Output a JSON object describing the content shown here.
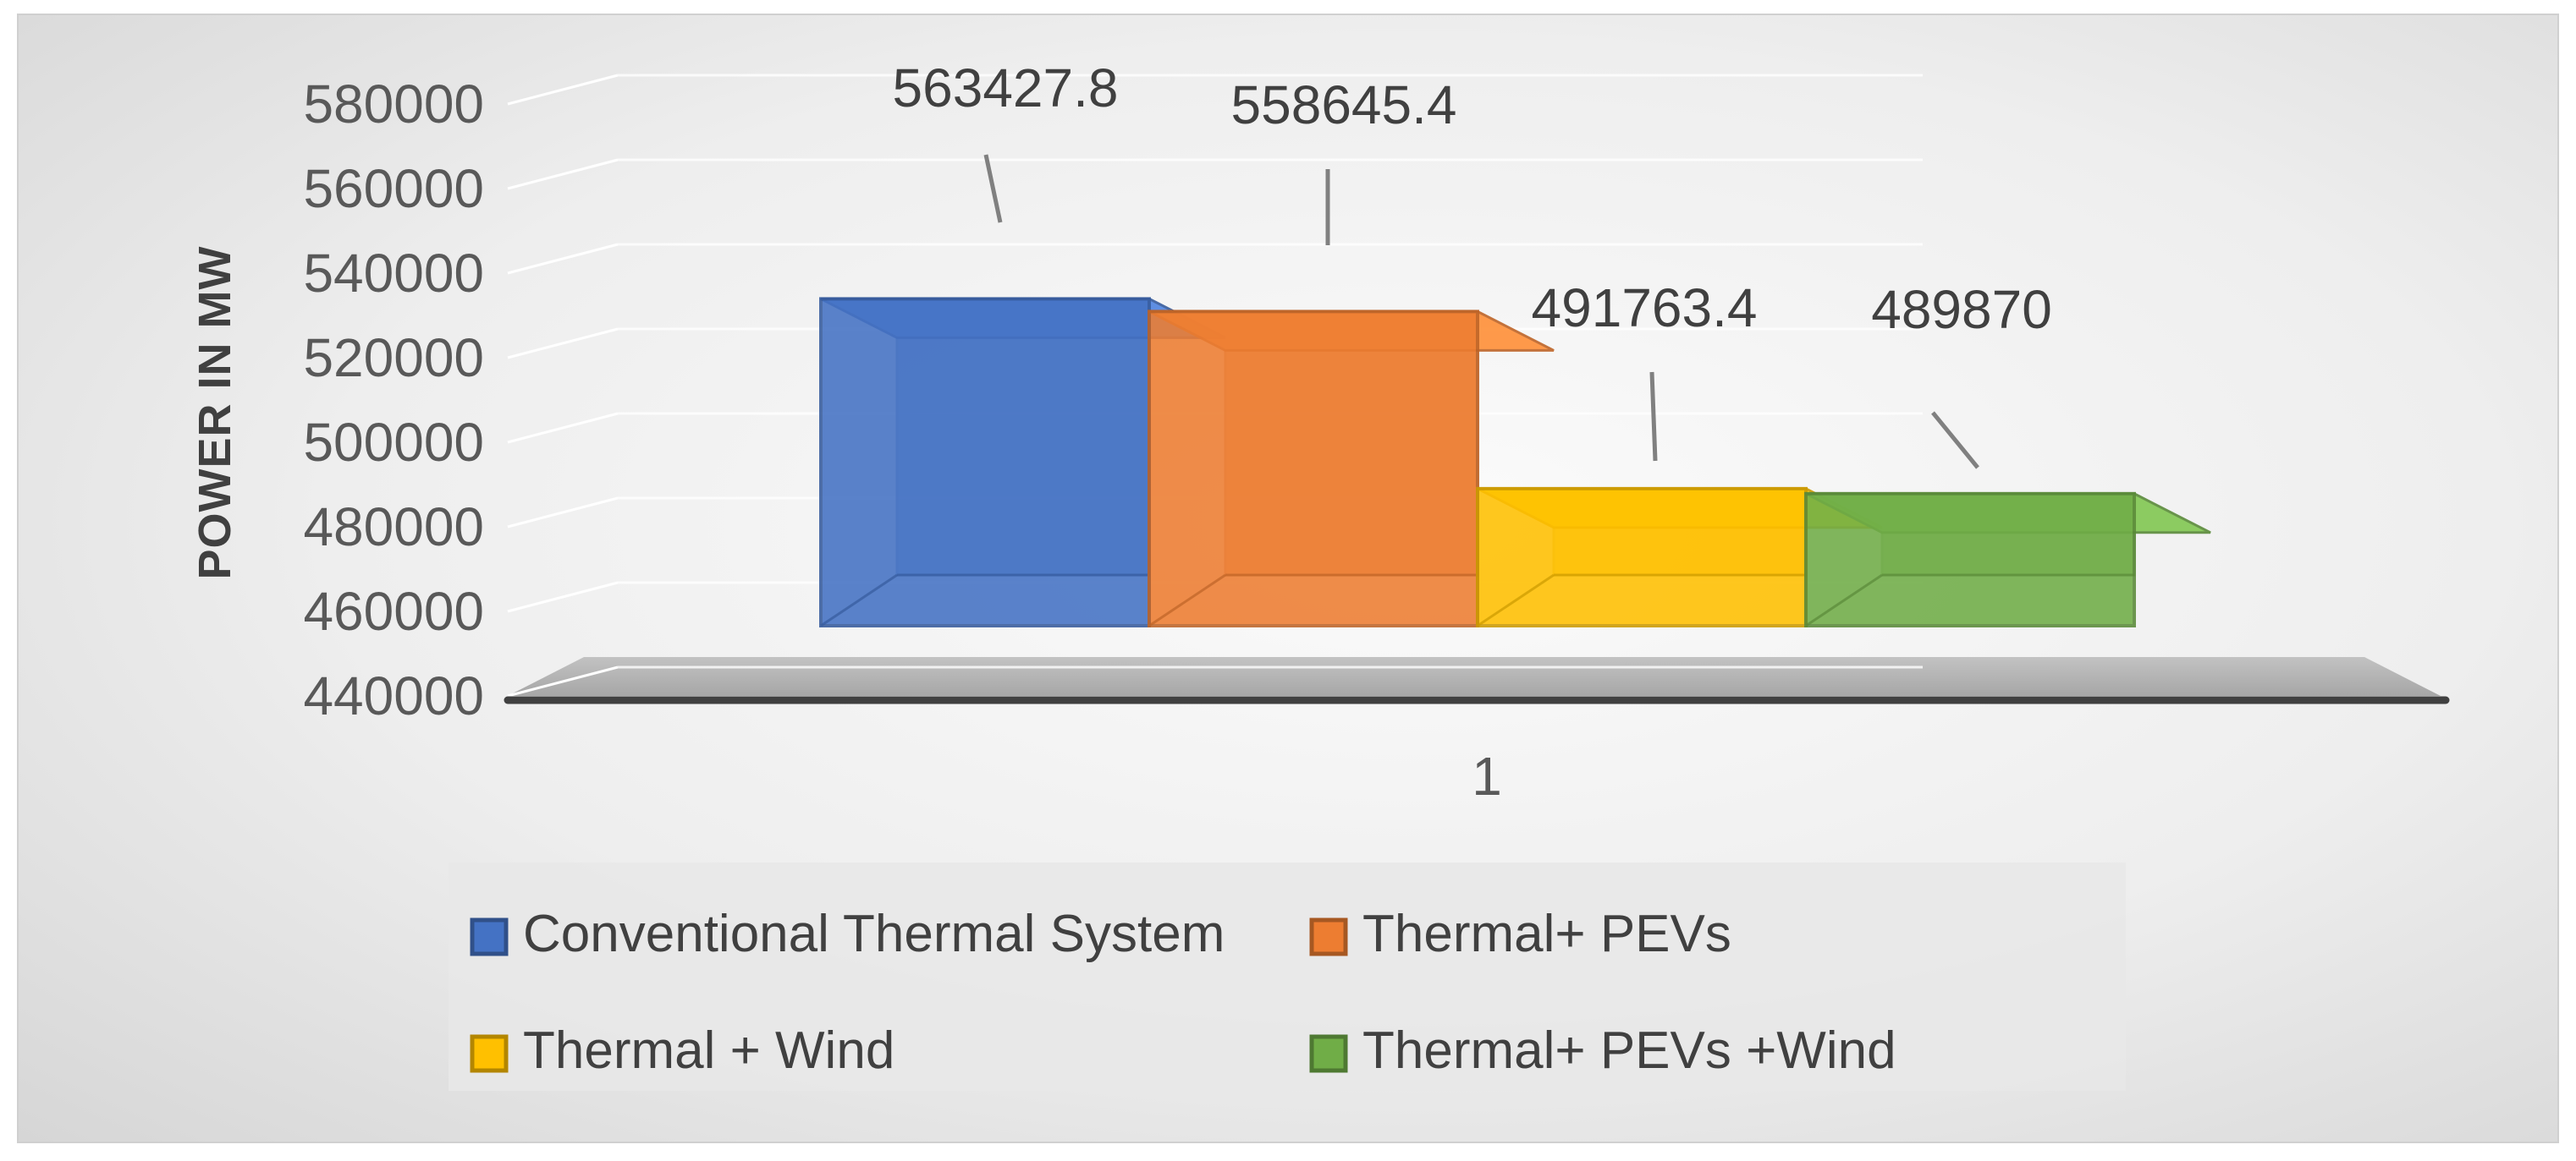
{
  "chart_data": {
    "type": "bar",
    "style": "3d-column",
    "categories": [
      "1"
    ],
    "series": [
      {
        "name": "Conventional Thermal System",
        "values": [
          563427.8
        ],
        "color": "#4472C4",
        "label": "563427.8"
      },
      {
        "name": "Thermal+ PEVs",
        "values": [
          558645.4
        ],
        "color": "#ED7D31",
        "label": "558645.4"
      },
      {
        "name": "Thermal + Wind",
        "values": [
          491763.4
        ],
        "color": "#FFC000",
        "label": "491763.4"
      },
      {
        "name": "Thermal+ PEVs +Wind",
        "values": [
          489870
        ],
        "color": "#70AD47",
        "label": "489870"
      }
    ],
    "ylabel": "POWER IN MW",
    "xlabel": "",
    "ylim": [
      440000,
      580000
    ],
    "yticks": [
      "440000",
      "460000",
      "480000",
      "500000",
      "520000",
      "540000",
      "560000",
      "580000"
    ],
    "grid": true,
    "legend_position": "bottom"
  }
}
